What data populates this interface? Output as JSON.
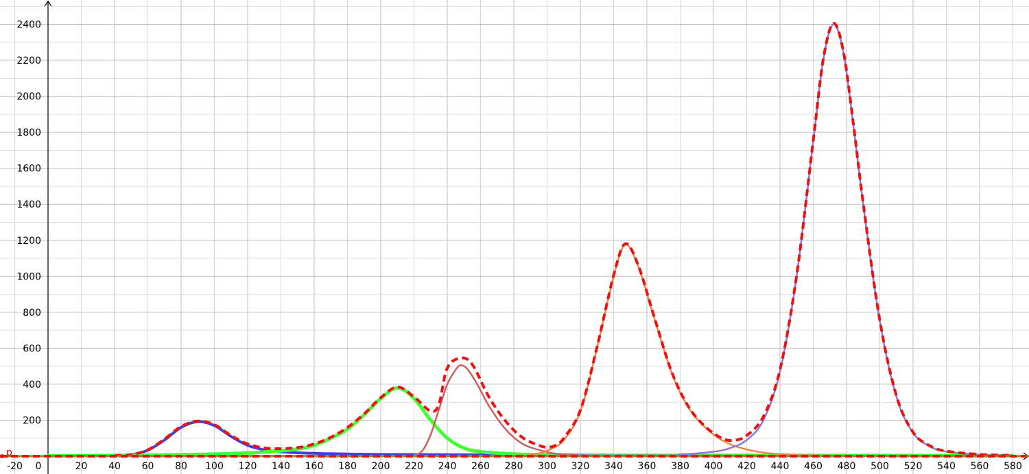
{
  "chart_data": {
    "type": "line",
    "title": "",
    "xlabel": "",
    "ylabel": "",
    "grid": true,
    "legend": "none",
    "xlim": [
      -25,
      593
    ],
    "ylim": [
      -50,
      2520
    ],
    "x_ticks": [
      -20,
      0,
      20,
      40,
      60,
      80,
      100,
      120,
      140,
      160,
      180,
      200,
      220,
      240,
      260,
      280,
      300,
      320,
      340,
      360,
      380,
      400,
      420,
      440,
      460,
      480,
      500,
      520,
      540,
      560,
      580
    ],
    "y_ticks": [
      200,
      400,
      600,
      800,
      1000,
      1200,
      1400,
      1600,
      1800,
      2000,
      2200,
      2400
    ],
    "annotations": [
      "p"
    ],
    "series": [
      {
        "color": "#4040e0",
        "style": "solid",
        "points": [
          [
            40,
            2
          ],
          [
            50,
            8
          ],
          [
            60,
            33
          ],
          [
            70,
            90
          ],
          [
            80,
            160
          ],
          [
            90,
            192
          ],
          [
            100,
            170
          ],
          [
            110,
            110
          ],
          [
            120,
            60
          ],
          [
            130,
            35
          ],
          [
            140,
            24
          ],
          [
            160,
            16
          ],
          [
            180,
            12
          ],
          [
            200,
            10
          ],
          [
            250,
            8
          ],
          [
            300,
            6
          ],
          [
            400,
            4
          ],
          [
            580,
            3
          ]
        ]
      },
      {
        "color": "#44ff33",
        "style": "solid",
        "points": [
          [
            0,
            2
          ],
          [
            40,
            4
          ],
          [
            80,
            8
          ],
          [
            100,
            12
          ],
          [
            120,
            18
          ],
          [
            140,
            30
          ],
          [
            150,
            40
          ],
          [
            160,
            60
          ],
          [
            170,
            100
          ],
          [
            180,
            150
          ],
          [
            190,
            230
          ],
          [
            200,
            320
          ],
          [
            210,
            380
          ],
          [
            220,
            320
          ],
          [
            230,
            200
          ],
          [
            240,
            100
          ],
          [
            250,
            45
          ],
          [
            260,
            25
          ],
          [
            280,
            12
          ],
          [
            300,
            8
          ],
          [
            350,
            5
          ],
          [
            580,
            3
          ]
        ]
      },
      {
        "color": "#cc6060",
        "style": "solid",
        "points": [
          [
            0,
            1
          ],
          [
            215,
            1
          ],
          [
            220,
            5
          ],
          [
            225,
            30
          ],
          [
            230,
            120
          ],
          [
            235,
            260
          ],
          [
            240,
            400
          ],
          [
            245,
            480
          ],
          [
            248,
            505
          ],
          [
            252,
            485
          ],
          [
            258,
            400
          ],
          [
            265,
            280
          ],
          [
            275,
            150
          ],
          [
            285,
            70
          ],
          [
            295,
            35
          ],
          [
            305,
            15
          ],
          [
            320,
            8
          ],
          [
            350,
            4
          ],
          [
            580,
            3
          ]
        ]
      },
      {
        "color": "#e98945",
        "style": "solid",
        "points": [
          [
            0,
            1
          ],
          [
            270,
            2
          ],
          [
            290,
            10
          ],
          [
            300,
            30
          ],
          [
            310,
            90
          ],
          [
            320,
            250
          ],
          [
            330,
            600
          ],
          [
            340,
            1000
          ],
          [
            347,
            1175
          ],
          [
            355,
            1050
          ],
          [
            365,
            750
          ],
          [
            375,
            460
          ],
          [
            385,
            270
          ],
          [
            395,
            160
          ],
          [
            405,
            90
          ],
          [
            415,
            50
          ],
          [
            430,
            20
          ],
          [
            450,
            8
          ],
          [
            480,
            3
          ],
          [
            580,
            2
          ]
        ]
      },
      {
        "color": "#8877dd",
        "style": "solid",
        "points": [
          [
            0,
            1
          ],
          [
            350,
            4
          ],
          [
            380,
            10
          ],
          [
            400,
            25
          ],
          [
            410,
            45
          ],
          [
            420,
            90
          ],
          [
            430,
            200
          ],
          [
            440,
            470
          ],
          [
            450,
            1000
          ],
          [
            460,
            1750
          ],
          [
            466,
            2200
          ],
          [
            472,
            2400
          ],
          [
            478,
            2250
          ],
          [
            484,
            1850
          ],
          [
            490,
            1400
          ],
          [
            500,
            750
          ],
          [
            510,
            330
          ],
          [
            520,
            130
          ],
          [
            530,
            55
          ],
          [
            540,
            25
          ],
          [
            560,
            8
          ],
          [
            580,
            3
          ]
        ]
      },
      {
        "color": "#ee1111",
        "style": "dashed",
        "points": [
          [
            40,
            3
          ],
          [
            50,
            9
          ],
          [
            60,
            35
          ],
          [
            70,
            95
          ],
          [
            80,
            165
          ],
          [
            90,
            195
          ],
          [
            100,
            175
          ],
          [
            110,
            115
          ],
          [
            120,
            68
          ],
          [
            130,
            46
          ],
          [
            140,
            42
          ],
          [
            150,
            48
          ],
          [
            160,
            68
          ],
          [
            170,
            105
          ],
          [
            180,
            160
          ],
          [
            190,
            235
          ],
          [
            200,
            325
          ],
          [
            210,
            385
          ],
          [
            220,
            330
          ],
          [
            230,
            250
          ],
          [
            235,
            290
          ],
          [
            240,
            490
          ],
          [
            248,
            545
          ],
          [
            255,
            510
          ],
          [
            265,
            330
          ],
          [
            275,
            195
          ],
          [
            285,
            105
          ],
          [
            295,
            60
          ],
          [
            300,
            50
          ],
          [
            305,
            60
          ],
          [
            310,
            100
          ],
          [
            320,
            255
          ],
          [
            330,
            605
          ],
          [
            340,
            1005
          ],
          [
            347,
            1180
          ],
          [
            355,
            1055
          ],
          [
            365,
            755
          ],
          [
            375,
            465
          ],
          [
            385,
            275
          ],
          [
            395,
            165
          ],
          [
            405,
            100
          ],
          [
            412,
            88
          ],
          [
            420,
            115
          ],
          [
            430,
            220
          ],
          [
            440,
            480
          ],
          [
            450,
            1005
          ],
          [
            460,
            1755
          ],
          [
            466,
            2205
          ],
          [
            472,
            2405
          ],
          [
            478,
            2255
          ],
          [
            484,
            1855
          ],
          [
            490,
            1405
          ],
          [
            500,
            755
          ],
          [
            510,
            335
          ],
          [
            520,
            133
          ],
          [
            530,
            58
          ],
          [
            540,
            28
          ],
          [
            560,
            10
          ],
          [
            580,
            4
          ]
        ]
      },
      {
        "color": "#888833",
        "style": "solid",
        "points": [
          [
            -25,
            0
          ],
          [
            593,
            0
          ]
        ]
      }
    ]
  }
}
